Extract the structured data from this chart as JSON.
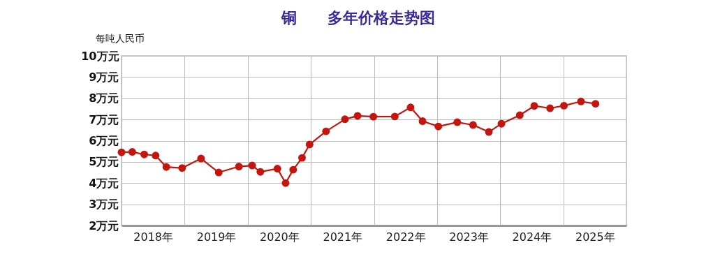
{
  "chart_data": {
    "type": "line",
    "title": "铜　　多年价格走势图",
    "ylabel": "每吨人民币",
    "x": [
      2018.0,
      2018.17,
      2018.36,
      2018.54,
      2018.71,
      2018.96,
      2019.26,
      2019.54,
      2019.86,
      2020.07,
      2020.2,
      2020.47,
      2020.6,
      2020.72,
      2020.86,
      2020.98,
      2021.24,
      2021.54,
      2021.74,
      2021.99,
      2022.33,
      2022.58,
      2022.77,
      2023.02,
      2023.32,
      2023.57,
      2023.82,
      2024.02,
      2024.31,
      2024.54,
      2024.79,
      2025.01,
      2025.28,
      2025.51
    ],
    "series": [
      {
        "color": "#c4160f",
        "values": [
          5.45,
          5.47,
          5.35,
          5.3,
          4.76,
          4.71,
          5.16,
          4.5,
          4.78,
          4.83,
          4.53,
          4.68,
          4.0,
          4.63,
          5.19,
          5.82,
          6.44,
          7.01,
          7.17,
          7.13,
          7.14,
          7.57,
          6.92,
          6.67,
          6.87,
          6.74,
          6.41,
          6.8,
          7.2,
          7.64,
          7.53,
          7.65,
          7.85,
          7.74
        ]
      }
    ],
    "xlim": [
      2018,
      2026
    ],
    "xticks": [
      {
        "value": 2018.5,
        "label": "2018年"
      },
      {
        "value": 2019,
        "label": null
      },
      {
        "value": 2019.5,
        "label": "2019年"
      },
      {
        "value": 2020,
        "label": null
      },
      {
        "value": 2020.5,
        "label": "2020年"
      },
      {
        "value": 2021,
        "label": null
      },
      {
        "value": 2021.5,
        "label": "2021年"
      },
      {
        "value": 2022,
        "label": null
      },
      {
        "value": 2022.5,
        "label": "2022年"
      },
      {
        "value": 2023,
        "label": null
      },
      {
        "value": 2023.5,
        "label": "2023年"
      },
      {
        "value": 2024,
        "label": null
      },
      {
        "value": 2024.5,
        "label": "2024年"
      },
      {
        "value": 2025,
        "label": null
      },
      {
        "value": 2025.5,
        "label": "2025年"
      }
    ],
    "ylim": [
      2,
      10
    ],
    "yticks": [
      {
        "value": 2,
        "label": "2万元"
      },
      {
        "value": 3,
        "label": "3万元"
      },
      {
        "value": 4,
        "label": "4万元"
      },
      {
        "value": 5,
        "label": "5万元"
      },
      {
        "value": 6,
        "label": "6万元"
      },
      {
        "value": 7,
        "label": "7万元"
      },
      {
        "value": 8,
        "label": "8万元"
      },
      {
        "value": 9,
        "label": "9万元"
      },
      {
        "value": 10,
        "label": "10万元"
      }
    ],
    "grid": true,
    "marker": "circle",
    "line_style": "solid"
  }
}
